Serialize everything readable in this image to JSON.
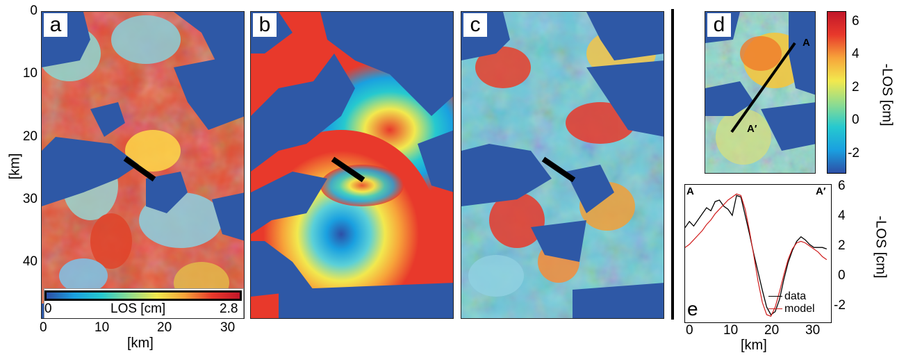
{
  "panels": {
    "a": {
      "label": "a"
    },
    "b": {
      "label": "b"
    },
    "c": {
      "label": "c"
    },
    "d": {
      "label": "d",
      "profile_start": "A",
      "profile_end": "A′"
    },
    "e": {
      "label": "e",
      "profile_start": "A",
      "profile_end": "A′"
    }
  },
  "map_axes": {
    "ylabel": "[km]",
    "xlabel": "[km]",
    "y_ticks": [
      "0",
      "10",
      "20",
      "30",
      "40"
    ],
    "x_ticks": [
      "0",
      "10",
      "20",
      "30"
    ],
    "xlim": [
      0,
      32
    ],
    "ylim": [
      0,
      49
    ]
  },
  "wrapped_colorbar": {
    "min_label": "0",
    "max_label": "2.8",
    "label": "LOS [cm]"
  },
  "colorbar": {
    "label": "-LOS [cm]",
    "ticks": [
      "6",
      "4",
      "2",
      "0",
      "-2"
    ],
    "range": [
      -3,
      6.8
    ],
    "colors": [
      "#2d4fa6",
      "#1aa0e0",
      "#26c9cf",
      "#8fdc8f",
      "#f2e94e",
      "#f7a43a",
      "#e8392b",
      "#c2172a"
    ]
  },
  "colors": {
    "water": "#2e58a6",
    "data_line": "#000000",
    "model_line": "#d01c1c"
  },
  "chart_data": {
    "type": "line",
    "xlabel": "[km]",
    "ylabel": "-LOS [cm]",
    "xlim": [
      -1,
      33
    ],
    "ylim": [
      -3,
      6
    ],
    "x_ticks": [
      "0",
      "10",
      "20",
      "30"
    ],
    "y_ticks": [
      "6",
      "4",
      "2",
      "0",
      "-2"
    ],
    "legend": "bottom-right",
    "series": [
      {
        "name": "data",
        "x": [
          -1,
          0,
          1,
          2,
          3,
          4,
          5,
          6,
          7,
          8,
          9,
          10,
          11,
          12,
          13,
          14,
          15,
          16,
          17,
          18,
          19,
          20,
          21,
          22,
          23,
          24,
          25,
          26,
          27,
          28,
          29,
          30,
          31,
          32
        ],
        "y": [
          3.2,
          3.6,
          3.3,
          3.7,
          4.1,
          4.5,
          4.3,
          4.9,
          5.0,
          4.6,
          4.4,
          4.0,
          5.3,
          5.2,
          4.0,
          2.8,
          1.5,
          0.3,
          -0.9,
          -2.0,
          -2.5,
          -2.3,
          -1.5,
          -0.2,
          0.9,
          1.7,
          2.3,
          2.6,
          2.4,
          2.1,
          1.9,
          1.9,
          1.9,
          1.8
        ]
      },
      {
        "name": "model",
        "x": [
          -1,
          0,
          1,
          2,
          3,
          4,
          5,
          6,
          7,
          8,
          9,
          10,
          11,
          12,
          13,
          14,
          15,
          16,
          17,
          18,
          19,
          20,
          21,
          22,
          23,
          24,
          25,
          26,
          27,
          28,
          29,
          30,
          31,
          32
        ],
        "y": [
          1.9,
          2.1,
          2.4,
          2.7,
          3.0,
          3.4,
          3.7,
          4.1,
          4.4,
          4.7,
          5.0,
          5.2,
          5.4,
          5.3,
          4.4,
          3.0,
          1.4,
          -0.3,
          -1.7,
          -2.5,
          -2.6,
          -2.0,
          -1.0,
          0.1,
          1.1,
          1.8,
          2.2,
          2.3,
          2.2,
          2.0,
          1.8,
          1.6,
          1.3,
          1.1
        ]
      }
    ]
  }
}
